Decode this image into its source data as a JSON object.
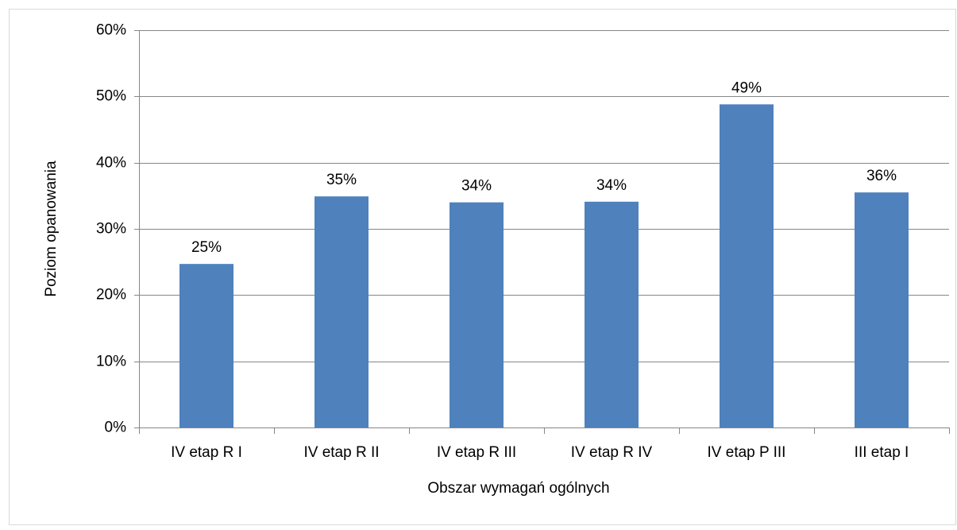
{
  "chart_data": {
    "type": "bar",
    "x_label": "Obszar wymagań ogólnych",
    "y_label": "Poziom opanowania",
    "categories": [
      "IV etap R I",
      "IV etap R II",
      "IV etap R III",
      "IV etap R IV",
      "IV etap P III",
      "III etap I"
    ],
    "values": [
      24.7,
      34.9,
      34.0,
      34.1,
      48.8,
      35.5
    ],
    "value_labels": [
      "25%",
      "35%",
      "34%",
      "34%",
      "49%",
      "36%"
    ],
    "color": "#4f81bd",
    "ylim": [
      0,
      60
    ],
    "yticks": [
      {
        "value": 0,
        "label": "0%"
      },
      {
        "value": 10,
        "label": "10%"
      },
      {
        "value": 20,
        "label": "20%"
      },
      {
        "value": 30,
        "label": "30%"
      },
      {
        "value": 40,
        "label": "40%"
      },
      {
        "value": 50,
        "label": "50%"
      },
      {
        "value": 60,
        "label": "60%"
      }
    ],
    "grid": true
  }
}
